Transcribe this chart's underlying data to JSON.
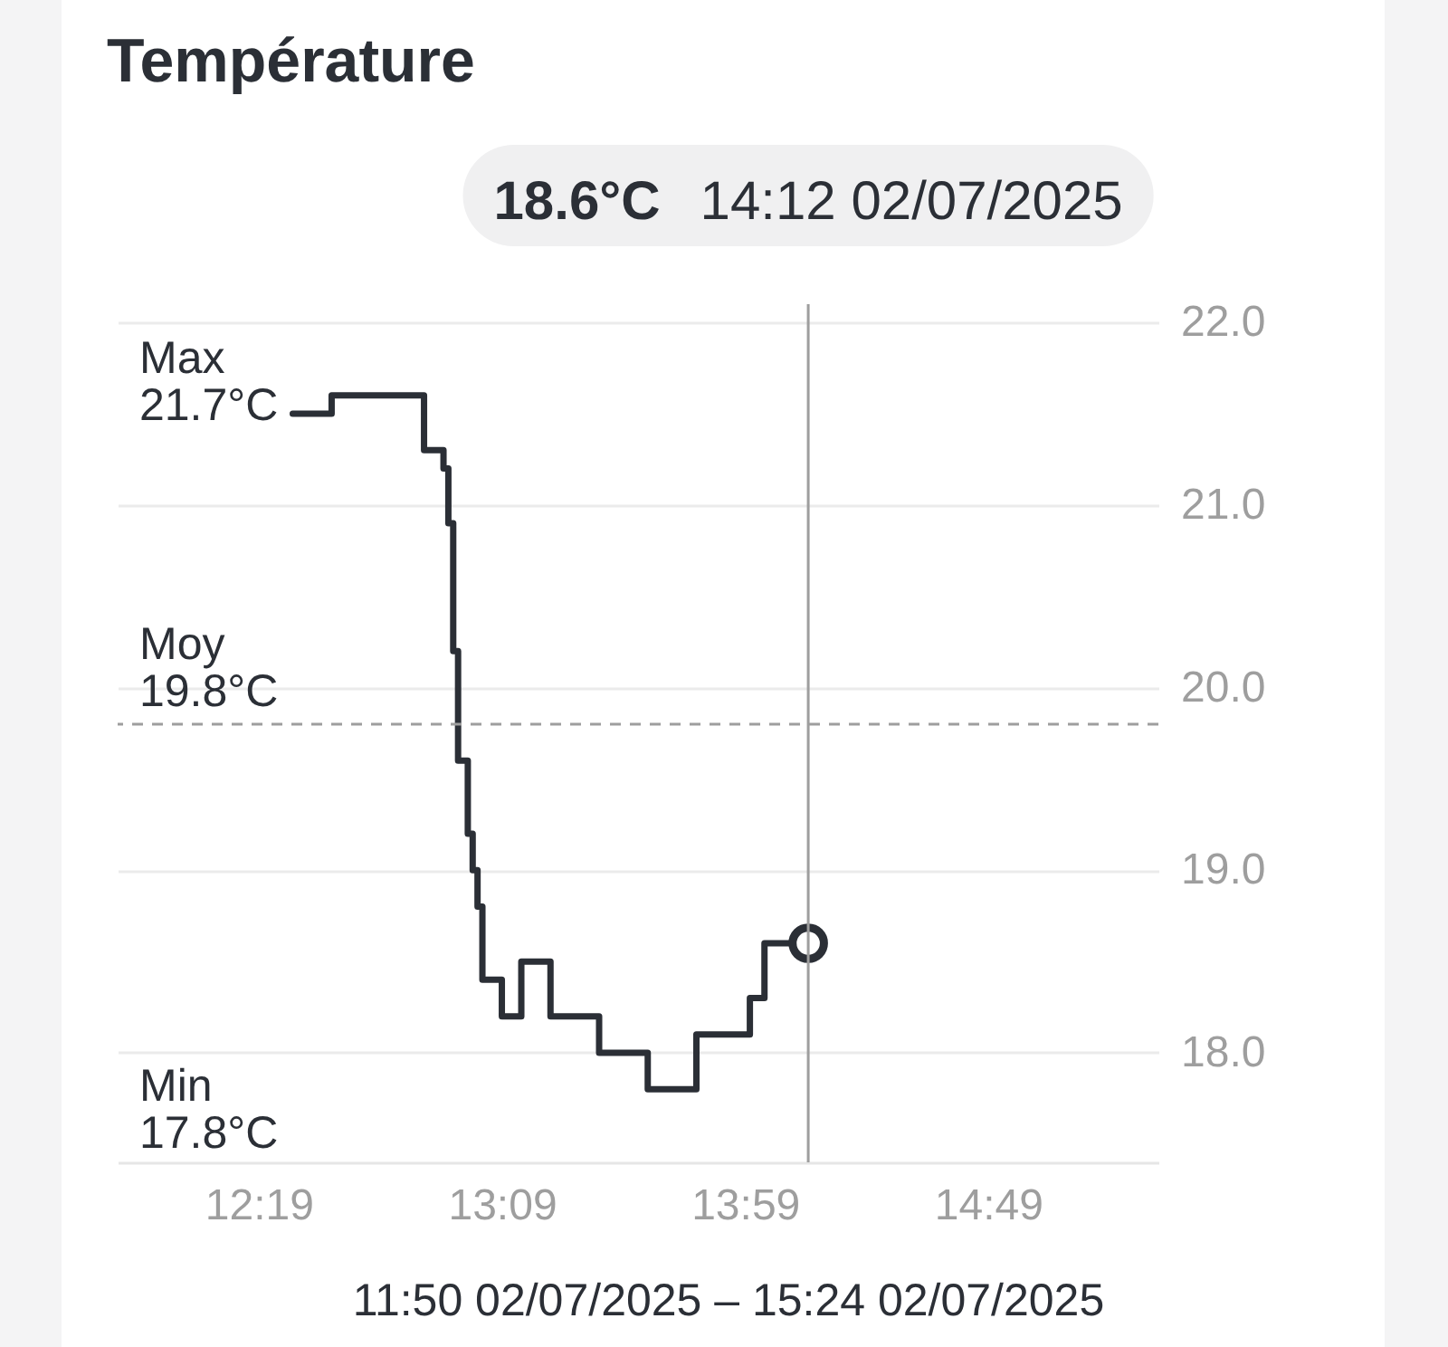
{
  "chart_data": {
    "type": "step",
    "title": "Température",
    "xlabel": "11:50 02/07/2025 – 15:24 02/07/2025",
    "series": [
      {
        "color": "#2b2f36",
        "x": [
          "2025-07-02T12:26",
          "2025-07-02T12:34",
          "2025-07-02T12:53",
          "2025-07-02T12:57",
          "2025-07-02T12:58",
          "2025-07-02T12:59",
          "2025-07-02T13:00",
          "2025-07-02T13:02",
          "2025-07-02T13:03",
          "2025-07-02T13:04",
          "2025-07-02T13:05",
          "2025-07-02T13:09",
          "2025-07-02T13:13",
          "2025-07-02T13:19",
          "2025-07-02T13:29",
          "2025-07-02T13:39",
          "2025-07-02T13:49",
          "2025-07-02T14:00",
          "2025-07-02T14:03",
          "2025-07-02T14:12"
        ],
        "values": [
          21.5,
          21.6,
          21.3,
          21.2,
          20.9,
          20.2,
          19.6,
          19.2,
          19.0,
          18.8,
          18.4,
          18.2,
          18.5,
          18.2,
          18.0,
          17.8,
          18.1,
          18.3,
          18.6,
          18.6
        ]
      },
      {
        "type": "scatter",
        "color": "#2b2f36",
        "marker": "circle",
        "x": [
          "2025-07-02T14:12"
        ],
        "values": [
          18.6
        ]
      }
    ],
    "xlim": [
      "2025-07-02T11:50",
      "2025-07-02T15:24"
    ],
    "xticks": [
      {
        "value": "2025-07-02T12:19",
        "label": "12:19"
      },
      {
        "value": "2025-07-02T13:09",
        "label": "13:09"
      },
      {
        "value": "2025-07-02T13:59",
        "label": "13:59"
      },
      {
        "value": "2025-07-02T14:49",
        "label": "14:49"
      }
    ],
    "ylim": [
      17.4,
      22.1
    ],
    "yticks": [
      {
        "value": 18,
        "label": "18.0"
      },
      {
        "value": 19,
        "label": "19.0"
      },
      {
        "value": 20,
        "label": "20.0"
      },
      {
        "value": 21,
        "label": "21.0"
      },
      {
        "value": 22,
        "label": "22.0"
      }
    ],
    "grid": "y",
    "ref_lines": [
      {
        "axis": "y",
        "value": 19.8,
        "label": "Moy\n19.8°C",
        "color": "#9e9e9e",
        "line_style": "dashed"
      },
      {
        "axis": "x",
        "value": "2025-07-02T14:12",
        "color": "#9e9e9e"
      }
    ],
    "annotations": [
      "Max\n21.7°C",
      "Min\n17.8°C",
      "18.6°C",
      "14:12 02/07/2025"
    ]
  }
}
